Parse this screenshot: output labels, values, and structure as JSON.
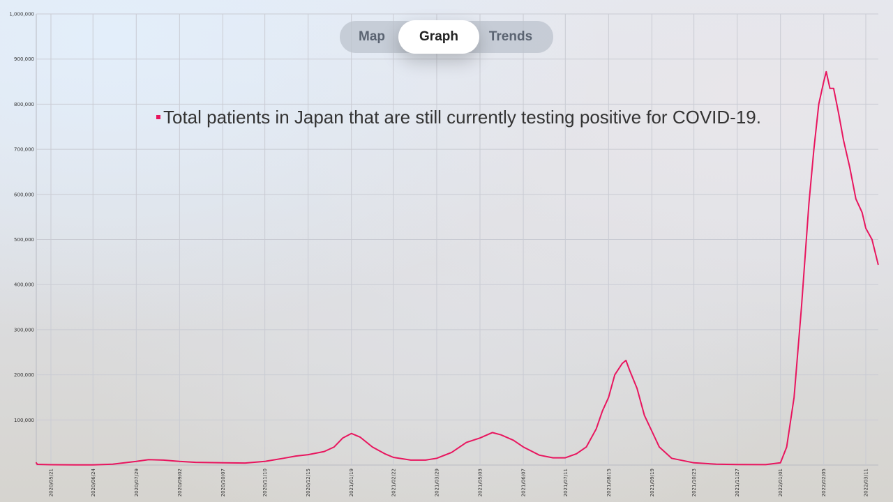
{
  "nav": {
    "tabs": [
      {
        "label": "Map",
        "selected": false
      },
      {
        "label": "Graph",
        "selected": true
      },
      {
        "label": "Trends",
        "selected": false
      }
    ]
  },
  "colors": {
    "series": "#e8155e"
  },
  "chart_data": {
    "type": "line",
    "title": "",
    "xlabel": "",
    "ylabel": "",
    "ylim": [
      0,
      1000000
    ],
    "grid": true,
    "y_ticks": [
      {
        "value": 100000,
        "label": "100,000"
      },
      {
        "value": 200000,
        "label": "200,000"
      },
      {
        "value": 300000,
        "label": "300,000"
      },
      {
        "value": 400000,
        "label": "400,000"
      },
      {
        "value": 500000,
        "label": "500,000"
      },
      {
        "value": 600000,
        "label": "600,000"
      },
      {
        "value": 700000,
        "label": "700,000"
      },
      {
        "value": 800000,
        "label": "800,000"
      },
      {
        "value": 900000,
        "label": "900,000"
      },
      {
        "value": 1000000,
        "label": "1,000,000"
      }
    ],
    "x_ticks": [
      "2020/05/21",
      "2020/06/24",
      "2020/07/29",
      "2020/09/02",
      "2020/10/07",
      "2020/11/10",
      "2020/12/15",
      "2021/01/19",
      "2021/02/22",
      "2021/03/29",
      "2021/05/03",
      "2021/06/07",
      "2021/07/11",
      "2021/08/15",
      "2021/09/19",
      "2021/10/23",
      "2021/11/27",
      "2022/01/01",
      "2022/02/05",
      "2022/03/11"
    ],
    "legend": {
      "position": "top-center",
      "entries": [
        "Total patients in Japan that are still currently testing positive for COVID-19."
      ]
    },
    "series": [
      {
        "name": "Total patients in Japan that are still currently testing positive for COVID-19.",
        "points": [
          [
            "2020/04/21",
            5000
          ],
          [
            "2020/05/10",
            1500
          ],
          [
            "2020/05/21",
            800
          ],
          [
            "2020/06/10",
            300
          ],
          [
            "2020/06/24",
            500
          ],
          [
            "2020/07/10",
            2000
          ],
          [
            "2020/07/29",
            8000
          ],
          [
            "2020/08/08",
            12000
          ],
          [
            "2020/08/20",
            11000
          ],
          [
            "2020/09/02",
            8000
          ],
          [
            "2020/09/15",
            6000
          ],
          [
            "2020/10/07",
            5000
          ],
          [
            "2020/10/25",
            4500
          ],
          [
            "2020/11/10",
            8000
          ],
          [
            "2020/11/25",
            15000
          ],
          [
            "2020/12/05",
            20000
          ],
          [
            "2020/12/15",
            23000
          ],
          [
            "2020/12/28",
            30000
          ],
          [
            "2021/01/05",
            40000
          ],
          [
            "2021/01/12",
            60000
          ],
          [
            "2021/01/19",
            70000
          ],
          [
            "2021/01/26",
            62000
          ],
          [
            "2021/02/05",
            40000
          ],
          [
            "2021/02/15",
            25000
          ],
          [
            "2021/02/22",
            17000
          ],
          [
            "2021/03/08",
            11000
          ],
          [
            "2021/03/20",
            11000
          ],
          [
            "2021/03/29",
            15000
          ],
          [
            "2021/04/10",
            28000
          ],
          [
            "2021/04/22",
            50000
          ],
          [
            "2021/05/03",
            60000
          ],
          [
            "2021/05/13",
            72000
          ],
          [
            "2021/05/20",
            67000
          ],
          [
            "2021/05/30",
            55000
          ],
          [
            "2021/06/07",
            40000
          ],
          [
            "2021/06/20",
            22000
          ],
          [
            "2021/07/01",
            16000
          ],
          [
            "2021/07/11",
            16000
          ],
          [
            "2021/07/20",
            25000
          ],
          [
            "2021/07/28",
            40000
          ],
          [
            "2021/08/05",
            80000
          ],
          [
            "2021/08/10",
            120000
          ],
          [
            "2021/08/15",
            150000
          ],
          [
            "2021/08/20",
            200000
          ],
          [
            "2021/08/26",
            225000
          ],
          [
            "2021/08/29",
            232000
          ],
          [
            "2021/09/01",
            210000
          ],
          [
            "2021/09/07",
            170000
          ],
          [
            "2021/09/13",
            110000
          ],
          [
            "2021/09/19",
            75000
          ],
          [
            "2021/09/25",
            40000
          ],
          [
            "2021/10/05",
            15000
          ],
          [
            "2021/10/23",
            5000
          ],
          [
            "2021/11/10",
            2000
          ],
          [
            "2021/11/27",
            1200
          ],
          [
            "2021/12/20",
            1000
          ],
          [
            "2022/01/01",
            5000
          ],
          [
            "2022/01/06",
            40000
          ],
          [
            "2022/01/12",
            150000
          ],
          [
            "2022/01/18",
            350000
          ],
          [
            "2022/01/24",
            580000
          ],
          [
            "2022/01/28",
            700000
          ],
          [
            "2022/02/01",
            800000
          ],
          [
            "2022/02/05",
            850000
          ],
          [
            "2022/02/07",
            872000
          ],
          [
            "2022/02/10",
            835000
          ],
          [
            "2022/02/13",
            835000
          ],
          [
            "2022/02/17",
            780000
          ],
          [
            "2022/02/21",
            720000
          ],
          [
            "2022/02/26",
            660000
          ],
          [
            "2022/03/03",
            590000
          ],
          [
            "2022/03/08",
            560000
          ],
          [
            "2022/03/11",
            525000
          ],
          [
            "2022/03/16",
            500000
          ],
          [
            "2022/03/21",
            445000
          ]
        ]
      }
    ]
  }
}
